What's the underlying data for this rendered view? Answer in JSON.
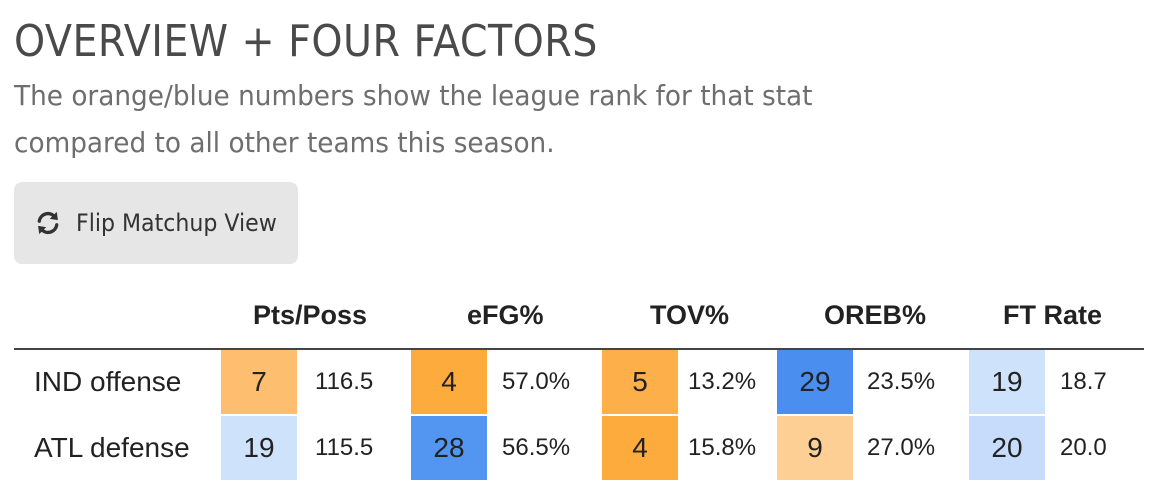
{
  "header": {
    "title": "OVERVIEW + FOUR FACTORS",
    "subtitle": "The orange/blue numbers show the league rank for that stat compared to all other teams this season."
  },
  "toolbar": {
    "flip_button_label": "Flip Matchup View",
    "flip_button_icon": "refresh-icon"
  },
  "table": {
    "columns": [
      "Pts/Poss",
      "eFG%",
      "TOV%",
      "OREB%",
      "FT Rate"
    ],
    "rows": [
      {
        "label": "IND offense",
        "cells": [
          {
            "rank": "7",
            "value": "116.5",
            "color": "#fdbf6f"
          },
          {
            "rank": "4",
            "value": "57.0%",
            "color": "#fdab3c"
          },
          {
            "rank": "5",
            "value": "13.2%",
            "color": "#fdb04a"
          },
          {
            "rank": "29",
            "value": "23.5%",
            "color": "#4a8ff0"
          },
          {
            "rank": "19",
            "value": "18.7",
            "color": "#cfe2fb"
          }
        ]
      },
      {
        "label": "ATL defense",
        "cells": [
          {
            "rank": "19",
            "value": "115.5",
            "color": "#cfe2fb"
          },
          {
            "rank": "28",
            "value": "56.5%",
            "color": "#5296f1"
          },
          {
            "rank": "4",
            "value": "15.8%",
            "color": "#fdab3c"
          },
          {
            "rank": "9",
            "value": "27.0%",
            "color": "#fecf95"
          },
          {
            "rank": "20",
            "value": "20.0",
            "color": "#c6dcfa"
          }
        ]
      }
    ]
  }
}
